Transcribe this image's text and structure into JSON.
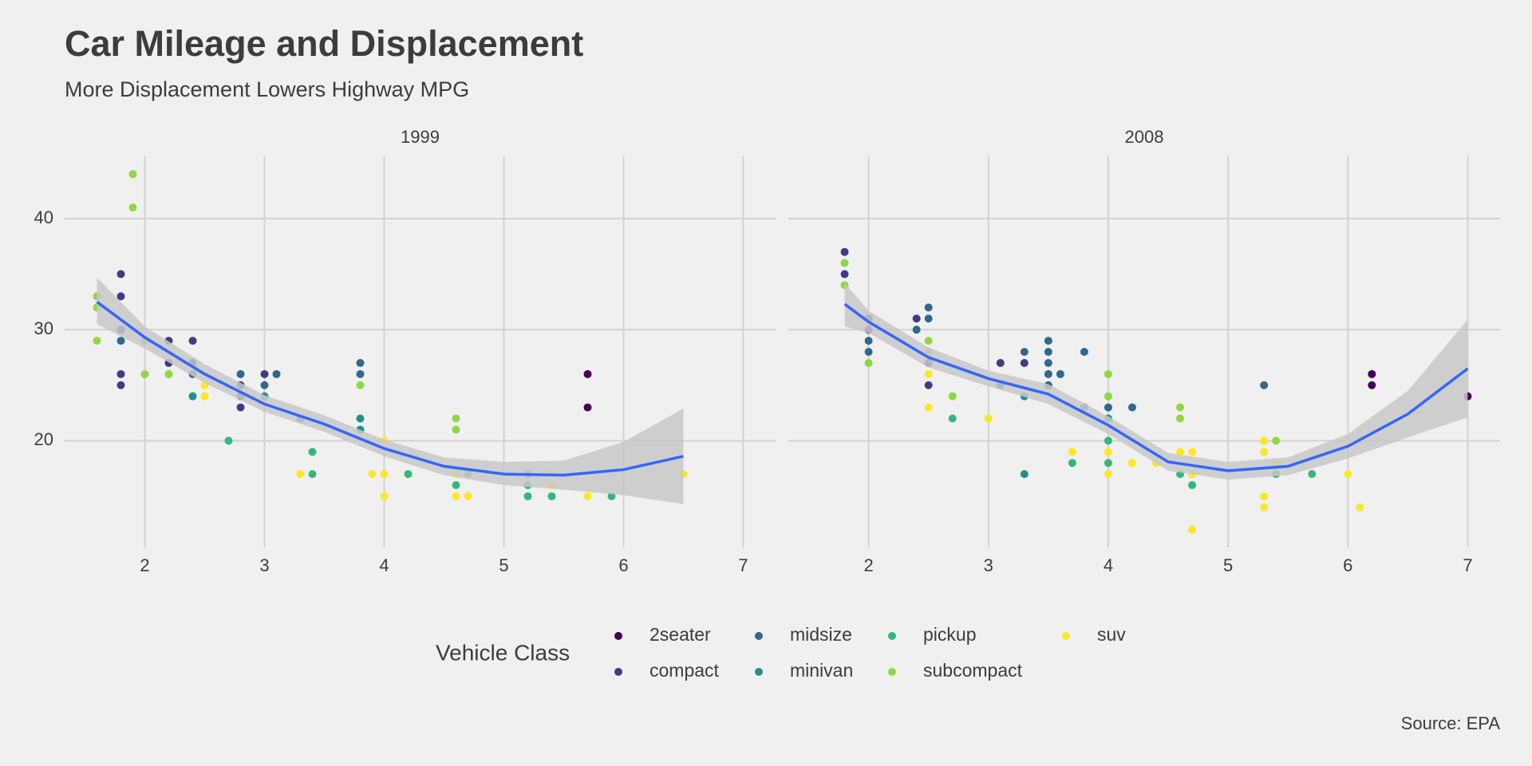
{
  "chart_data": {
    "type": "scatter",
    "title": "Car Mileage and Displacement",
    "subtitle": "More Displacement Lowers Highway MPG",
    "caption": "Source: EPA",
    "legend_title": "Vehicle Class",
    "legend_position": "bottom",
    "grid": true,
    "xlim": [
      1.33,
      7.27
    ],
    "xticks": [
      2,
      3,
      4,
      5,
      6,
      7
    ],
    "ylim": [
      10.4,
      45.6
    ],
    "yticks": [
      20,
      30,
      40
    ],
    "panels": [
      {
        "title": "1999",
        "smooth": {
          "color": "#3366ff",
          "band_color": "#c8c8c8",
          "x": [
            1.6,
            2.0,
            2.5,
            3.0,
            3.5,
            4.0,
            4.5,
            5.0,
            5.5,
            6.0,
            6.5
          ],
          "values": [
            32.5,
            29.3,
            26,
            23.3,
            21.5,
            19.3,
            17.7,
            17.0,
            16.9,
            17.4,
            18.6
          ],
          "lower": [
            30.5,
            28.3,
            25.2,
            22.6,
            20.8,
            18.6,
            16.9,
            16.0,
            15.6,
            15.1,
            14.3
          ],
          "upper": [
            34.7,
            30.3,
            26.9,
            24.1,
            22.3,
            20.1,
            18.5,
            18.1,
            18.2,
            19.9,
            22.9
          ]
        }
      },
      {
        "title": "2008",
        "smooth": {
          "color": "#3366ff",
          "band_color": "#c8c8c8",
          "x": [
            1.8,
            2.0,
            2.5,
            3.0,
            3.5,
            4.0,
            4.5,
            5.0,
            5.5,
            6.0,
            6.5,
            7.0
          ],
          "values": [
            32.3,
            30.7,
            27.5,
            25.6,
            24.2,
            21.4,
            18.1,
            17.3,
            17.7,
            19.5,
            22.4,
            26.5
          ],
          "lower": [
            30.3,
            29.7,
            26.6,
            24.9,
            23.3,
            20.6,
            17.3,
            16.5,
            16.9,
            18.4,
            20.3,
            22.1
          ],
          "upper": [
            34.2,
            31.7,
            28.4,
            26.3,
            25.1,
            22.2,
            18.9,
            18.1,
            18.5,
            20.6,
            24.5,
            30.9
          ]
        }
      }
    ],
    "series": [
      {
        "name": "2seater",
        "color": "#440154",
        "panels": [
          {
            "x": [
              5.7,
              5.7
            ],
            "values": [
              26,
              23
            ]
          },
          {
            "x": [
              6.2,
              6.2,
              7.0
            ],
            "values": [
              26,
              25,
              24
            ]
          }
        ]
      },
      {
        "name": "compact",
        "color": "#443a83",
        "panels": [
          {
            "x": [
              1.8,
              1.8,
              1.8,
              1.8,
              1.8,
              2.2,
              2.2,
              2.4,
              2.4,
              2.8,
              2.8,
              3.0
            ],
            "values": [
              35,
              33,
              30,
              26,
              25,
              29,
              27,
              29,
              27,
              23,
              25,
              26
            ]
          },
          {
            "x": [
              1.8,
              1.8,
              2.0,
              2.0,
              2.4,
              2.5,
              2.5,
              3.1,
              3.3
            ],
            "values": [
              37,
              35,
              31,
              30,
              31,
              27,
              25,
              27,
              27
            ]
          }
        ]
      },
      {
        "name": "midsize",
        "color": "#31688e",
        "panels": [
          {
            "x": [
              1.8,
              2.4,
              2.8,
              2.8,
              3.0,
              3.1,
              3.8,
              3.8
            ],
            "values": [
              29,
              26,
              26,
              24,
              25,
              26,
              27,
              26
            ]
          },
          {
            "x": [
              2.0,
              2.0,
              2.4,
              2.5,
              2.5,
              3.1,
              3.3,
              3.5,
              3.5,
              3.5,
              3.5,
              3.5,
              3.6,
              3.8,
              4.0,
              4.2,
              5.3
            ],
            "values": [
              28,
              29,
              30,
              32,
              31,
              25,
              28,
              29,
              28,
              27,
              26,
              25,
              26,
              28,
              23,
              23,
              25
            ]
          }
        ]
      },
      {
        "name": "minivan",
        "color": "#21908c",
        "panels": [
          {
            "x": [
              2.4,
              3.0,
              3.3,
              3.8,
              3.8
            ],
            "values": [
              24,
              24,
              22,
              22,
              21
            ]
          },
          {
            "x": [
              3.3,
              3.3,
              3.8,
              4.0
            ],
            "values": [
              24,
              17,
              23,
              22
            ]
          }
        ]
      },
      {
        "name": "pickup",
        "color": "#35b779",
        "panels": [
          {
            "x": [
              2.7,
              3.4,
              3.4,
              4.2,
              4.6,
              4.7,
              5.2,
              5.2,
              5.2,
              5.4,
              5.9
            ],
            "values": [
              20,
              19,
              17,
              17,
              16,
              17,
              17,
              16,
              15,
              15,
              15
            ]
          },
          {
            "x": [
              2.7,
              3.7,
              4.0,
              4.0,
              4.6,
              4.7,
              4.7,
              5.4,
              5.7
            ],
            "values": [
              22,
              18,
              20,
              18,
              17,
              16,
              17,
              17,
              17
            ]
          }
        ]
      },
      {
        "name": "subcompact",
        "color": "#8fd744",
        "panels": [
          {
            "x": [
              1.6,
              1.6,
              1.6,
              1.9,
              1.9,
              2.0,
              2.0,
              2.2,
              3.8,
              4.6,
              4.6
            ],
            "values": [
              33,
              32,
              29,
              44,
              41,
              29,
              26,
              26,
              25,
              22,
              21
            ]
          },
          {
            "x": [
              1.8,
              1.8,
              2.0,
              2.5,
              2.5,
              2.7,
              4.0,
              4.0,
              4.6,
              4.6,
              5.4
            ],
            "values": [
              36,
              34,
              27,
              29,
              28,
              24,
              26,
              24,
              23,
              22,
              20
            ]
          }
        ]
      },
      {
        "name": "suv",
        "color": "#fde725",
        "panels": [
          {
            "x": [
              2.5,
              2.5,
              3.3,
              3.9,
              4.0,
              4.0,
              4.0,
              4.6,
              4.6,
              4.7,
              5.4,
              5.4,
              5.7,
              6.5
            ],
            "values": [
              24,
              25,
              17,
              17,
              20,
              17,
              15,
              17,
              15,
              15,
              17,
              16,
              15,
              17
            ]
          },
          {
            "x": [
              2.5,
              2.5,
              3.0,
              3.7,
              4.0,
              4.0,
              4.2,
              4.4,
              4.6,
              4.7,
              4.7,
              4.7,
              5.3,
              5.3,
              5.3,
              5.3,
              5.4,
              5.6,
              6.0,
              6.1
            ],
            "values": [
              26,
              23,
              22,
              19,
              19,
              17,
              18,
              18,
              19,
              19,
              17,
              12,
              20,
              19,
              15,
              14,
              18,
              18,
              17,
              14
            ]
          }
        ]
      }
    ]
  }
}
